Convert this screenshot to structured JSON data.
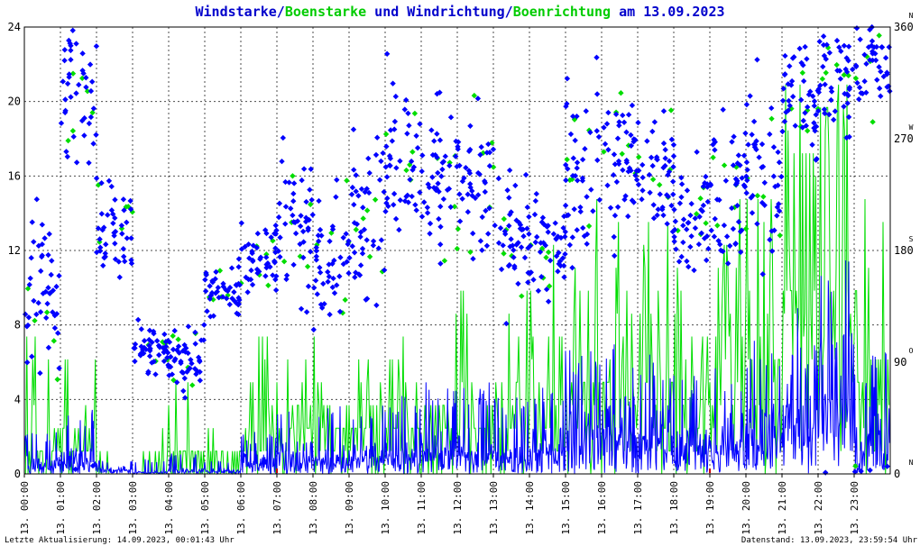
{
  "title_parts": [
    {
      "text": "Windstarke",
      "color": "#0000cc"
    },
    {
      "text": "/",
      "color": "#0000cc"
    },
    {
      "text": "Boenstarke",
      "color": "#00cc00"
    },
    {
      "text": " und ",
      "color": "#0000cc"
    },
    {
      "text": "Windrichtung",
      "color": "#0000cc"
    },
    {
      "text": "/",
      "color": "#0000cc"
    },
    {
      "text": "Boenrichtung",
      "color": "#00cc00"
    },
    {
      "text": " am 13.09.2023",
      "color": "#0000cc"
    }
  ],
  "footer": {
    "left": "Letzte Aktualisierung: 14.09.2023, 00:01:43 Uhr",
    "right": "Datenstand: 13.09.2023, 23:59:54 Uhr"
  },
  "colors": {
    "wind": "#0000ff",
    "gust": "#00dd00",
    "grid": "#000000",
    "axis": "#000000",
    "midnight_marker": "#cc0000"
  },
  "chart_data": {
    "type": "line+scatter",
    "x_tick_labels": [
      "13. 00:00",
      "13. 01:00",
      "13. 02:00",
      "13. 03:00",
      "13. 04:00",
      "13. 05:00",
      "13. 06:00",
      "13. 07:00",
      "13. 08:00",
      "13. 09:00",
      "13. 10:00",
      "13. 11:00",
      "13. 12:00",
      "13. 13:00",
      "13. 14:00",
      "13. 15:00",
      "13. 16:00",
      "13. 17:00",
      "13. 18:00",
      "13. 19:00",
      "13. 20:00",
      "13. 21:00",
      "13. 22:00",
      "13. 23:00"
    ],
    "x_range_hours": [
      0,
      24
    ],
    "y_left": {
      "ticks": [
        0,
        4,
        8,
        12,
        16,
        20,
        24
      ],
      "range": [
        0,
        24
      ]
    },
    "y_right": {
      "ticks": [
        0,
        90,
        180,
        270,
        360
      ],
      "compass": [
        "N",
        "O",
        "S",
        "W",
        "N"
      ],
      "range": [
        0,
        360
      ]
    },
    "grid": true,
    "series": [
      {
        "kind": "speed",
        "hourly_mean": [
          0.6,
          0.9,
          0.3,
          0.1,
          0.2,
          0.2,
          0.7,
          1.1,
          1.0,
          1.1,
          1.2,
          1.5,
          1.3,
          1.0,
          1.6,
          2.4,
          2.8,
          2.4,
          1.8,
          2.2,
          2.4,
          4.2,
          4.8,
          2.4
        ],
        "hourly_max": [
          2.3,
          3.5,
          0.8,
          0.8,
          1.1,
          0.8,
          2.3,
          3.5,
          4.0,
          4.0,
          4.4,
          5.0,
          5.3,
          4.5,
          5.3,
          6.8,
          7.2,
          6.5,
          5.3,
          6.0,
          7.2,
          9.5,
          11.5,
          6.5
        ]
      },
      {
        "kind": "gust",
        "hourly_mean": [
          2.2,
          2.2,
          0.7,
          0.5,
          1.3,
          0.8,
          2.4,
          3.4,
          3.1,
          3.4,
          3.6,
          4.2,
          3.8,
          3.5,
          4.6,
          6.4,
          6.9,
          6.2,
          5.0,
          5.9,
          6.8,
          11.8,
          12.6,
          6.0
        ],
        "hourly_max": [
          7.4,
          7.4,
          2.5,
          2.5,
          4.9,
          2.5,
          7.4,
          7.4,
          7.4,
          7.4,
          7.4,
          9.9,
          11.1,
          9.9,
          12.3,
          14.8,
          17.3,
          14.8,
          12.3,
          14.8,
          16.0,
          22.2,
          22.2,
          14.8
        ]
      },
      {
        "kind": "direction",
        "hourly_center_deg": [
          150,
          310,
          200,
          100,
          90,
          150,
          175,
          200,
          180,
          210,
          250,
          240,
          230,
          190,
          180,
          240,
          250,
          240,
          210,
          230,
          240,
          300,
          320,
          330
        ],
        "hourly_spread_deg": [
          60,
          60,
          40,
          20,
          25,
          20,
          25,
          60,
          50,
          70,
          70,
          60,
          60,
          50,
          40,
          70,
          60,
          50,
          40,
          60,
          70,
          50,
          40,
          40
        ]
      },
      {
        "kind": "gust_direction",
        "hourly_center_deg": [
          150,
          310,
          200,
          100,
          90,
          150,
          175,
          200,
          180,
          210,
          250,
          240,
          230,
          190,
          180,
          240,
          250,
          240,
          210,
          230,
          240,
          300,
          320,
          330
        ],
        "hourly_spread_deg": [
          60,
          60,
          40,
          20,
          25,
          20,
          25,
          60,
          50,
          70,
          70,
          60,
          60,
          50,
          40,
          70,
          60,
          50,
          40,
          60,
          70,
          50,
          40,
          40
        ]
      }
    ]
  }
}
